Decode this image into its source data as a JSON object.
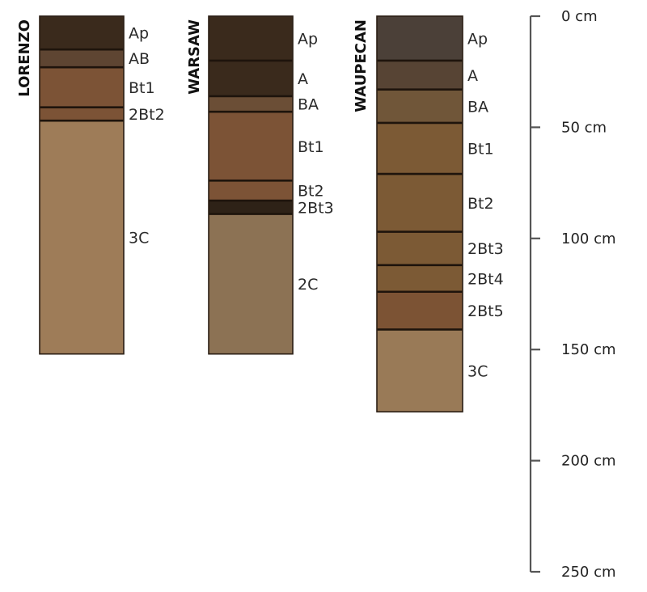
{
  "diagram": {
    "depth_unit": "cm",
    "profiles": [
      {
        "name": "LORENZO",
        "bottom_depth": 152,
        "horizons": [
          {
            "label": "Ap",
            "top": 0,
            "bottom": 15,
            "color": "#3a2a1c"
          },
          {
            "label": "AB",
            "top": 15,
            "bottom": 23,
            "color": "#5e4532"
          },
          {
            "label": "Bt1",
            "top": 23,
            "bottom": 41,
            "color": "#7c5336"
          },
          {
            "label": "2Bt2",
            "top": 41,
            "bottom": 47,
            "color": "#7c5336"
          },
          {
            "label": "3C",
            "top": 47,
            "bottom": 152,
            "color": "#9e7c58"
          }
        ]
      },
      {
        "name": "WARSAW",
        "bottom_depth": 152,
        "horizons": [
          {
            "label": "Ap",
            "top": 0,
            "bottom": 20,
            "color": "#3a2a1c"
          },
          {
            "label": "A",
            "top": 20,
            "bottom": 36,
            "color": "#3a2a1c"
          },
          {
            "label": "BA",
            "top": 36,
            "bottom": 43,
            "color": "#6b4e36"
          },
          {
            "label": "Bt1",
            "top": 43,
            "bottom": 74,
            "color": "#7c5336"
          },
          {
            "label": "Bt2",
            "top": 74,
            "bottom": 83,
            "color": "#7c5336"
          },
          {
            "label": "2Bt3",
            "top": 83,
            "bottom": 89,
            "color": "#2e2217"
          },
          {
            "label": "2C",
            "top": 89,
            "bottom": 152,
            "color": "#8c7254"
          }
        ]
      },
      {
        "name": "WAUPECAN",
        "bottom_depth": 178,
        "horizons": [
          {
            "label": "Ap",
            "top": 0,
            "bottom": 20,
            "color": "#4b4038"
          },
          {
            "label": "A",
            "top": 20,
            "bottom": 33,
            "color": "#574434"
          },
          {
            "label": "BA",
            "top": 33,
            "bottom": 48,
            "color": "#705639"
          },
          {
            "label": "Bt1",
            "top": 48,
            "bottom": 71,
            "color": "#7c5a35"
          },
          {
            "label": "Bt2",
            "top": 71,
            "bottom": 97,
            "color": "#7c5a35"
          },
          {
            "label": "2Bt3",
            "top": 97,
            "bottom": 112,
            "color": "#7c5a35"
          },
          {
            "label": "2Bt4",
            "top": 112,
            "bottom": 124,
            "color": "#7c5a35"
          },
          {
            "label": "2Bt5",
            "top": 124,
            "bottom": 141,
            "color": "#7c5334"
          },
          {
            "label": "3C",
            "top": 141,
            "bottom": 178,
            "color": "#997a57"
          }
        ]
      }
    ],
    "scale": {
      "ticks": [
        0,
        50,
        100,
        150,
        200,
        250
      ],
      "tick_labels": [
        "0 cm",
        "50 cm",
        "100 cm",
        "150 cm",
        "200 cm",
        "250 cm"
      ]
    }
  }
}
